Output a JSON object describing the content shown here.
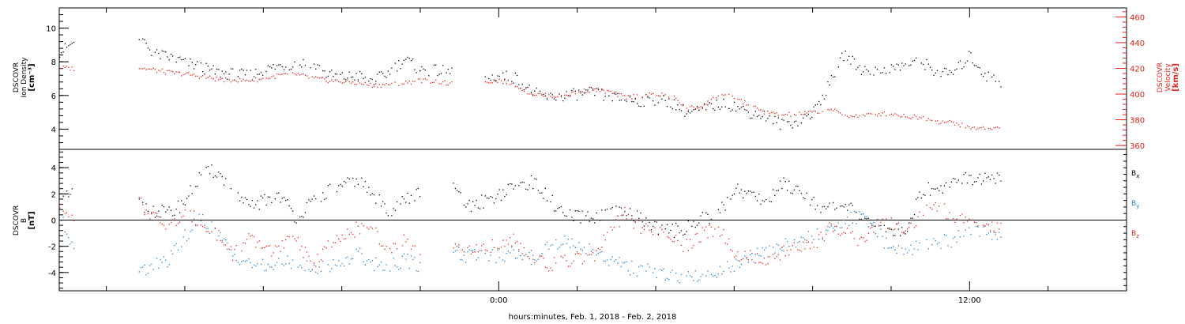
{
  "colors": {
    "density": "#000000",
    "velocity": "#e8201c",
    "bx": "#000000",
    "by": "#1f7fd0",
    "bz": "#e8201c",
    "axis": "#000000"
  },
  "xlabel": "hours:minutes, Feb.  1, 2018 - Feb.  2, 2018",
  "x_tick_labels": [
    "0:00",
    "12:00"
  ],
  "chart_data": [
    {
      "type": "scatter",
      "panel": "plasma",
      "x_unit": "hours relative to 2018-02-02 00:00",
      "x": [
        -11.2,
        -10.8,
        -10.4,
        -10,
        -9.6,
        -9.2,
        -8.8,
        -8.4,
        -8,
        -7.6,
        -7.2,
        -6.8,
        -6.4,
        -6,
        -5.6,
        -5.2,
        -4.8,
        -4.4,
        -4,
        -3.6,
        -3.2,
        -2.8,
        -2.4,
        -2,
        -1.6,
        -1.2,
        -0.8,
        -0.4,
        0,
        0.4,
        0.8,
        1.2,
        1.6,
        2,
        2.4,
        2.8,
        3.2,
        3.6,
        4,
        4.4,
        4.8,
        5.2,
        5.6,
        6,
        6.4,
        6.8,
        7.2,
        7.6,
        8,
        8.4,
        8.8,
        9.2,
        9.6,
        10,
        10.4,
        10.8,
        11.2,
        11.6,
        12,
        12.4,
        12.8
      ],
      "xlim": [
        -11.2,
        16
      ],
      "x_tick_labels": [
        "0:00",
        "12:00"
      ],
      "ylabel": [
        "DSCOVR",
        "Ion Density",
        "[cm⁻³]"
      ],
      "ylim": [
        2.8,
        11.2
      ],
      "y_ticks": [
        4,
        6,
        8,
        10
      ],
      "y2label": [
        "DSCOVR",
        "Velocity",
        "[km/s]"
      ],
      "y2lim": [
        357,
        467
      ],
      "y2_ticks": [
        360,
        380,
        400,
        420,
        440,
        460
      ],
      "series": [
        {
          "name": "",
          "axis": "left",
          "values": [
            8.6,
            9.2,
            null,
            null,
            null,
            9.6,
            8.5,
            8.3,
            8.0,
            7.7,
            7.4,
            7.3,
            7.2,
            7.5,
            7.8,
            7.9,
            8.0,
            7.3,
            7.1,
            7.2,
            6.9,
            7.4,
            8.2,
            7.5,
            7.5,
            7.4,
            null,
            7.0,
            7.2,
            7.1,
            6.3,
            5.9,
            6.0,
            6.1,
            6.2,
            5.9,
            5.8,
            5.7,
            5.8,
            5.6,
            5.0,
            5.2,
            5.5,
            5.4,
            5.0,
            4.8,
            4.3,
            4.5,
            5.0,
            6.6,
            8.5,
            7.6,
            7.5,
            7.6,
            7.9,
            8.0,
            7.3,
            7.4,
            8.4,
            7.2,
            6.8
          ]
        },
        {
          "name": "",
          "axis": "right",
          "values": [
            421,
            420,
            null,
            null,
            null,
            421,
            419,
            417,
            416,
            414,
            412,
            411,
            411,
            412,
            415,
            416,
            413,
            411,
            410,
            409,
            407,
            408,
            409,
            411,
            410,
            408,
            null,
            410,
            411,
            408,
            401,
            399,
            399,
            402,
            404,
            402,
            398,
            399,
            400,
            399,
            389,
            391,
            400,
            398,
            391,
            386,
            384,
            385,
            386,
            389,
            384,
            383,
            385,
            385,
            383,
            382,
            379,
            378,
            374,
            374,
            374
          ]
        }
      ]
    },
    {
      "type": "scatter",
      "panel": "magnetic-field",
      "x_unit": "hours relative to 2018-02-02 00:00",
      "x": [
        -11.2,
        -10.8,
        -10.4,
        -10,
        -9.6,
        -9.2,
        -8.8,
        -8.4,
        -8,
        -7.6,
        -7.2,
        -6.8,
        -6.4,
        -6,
        -5.6,
        -5.2,
        -4.8,
        -4.4,
        -4,
        -3.6,
        -3.2,
        -2.8,
        -2.4,
        -2,
        -1.6,
        -1.2,
        -0.8,
        -0.4,
        0,
        0.4,
        0.8,
        1.2,
        1.6,
        2,
        2.4,
        2.8,
        3.2,
        3.6,
        4,
        4.4,
        4.8,
        5.2,
        5.6,
        6,
        6.4,
        6.8,
        7.2,
        7.6,
        8,
        8.4,
        8.8,
        9.2,
        9.6,
        10,
        10.4,
        10.8,
        11.2,
        11.6,
        12,
        12.4,
        12.8
      ],
      "xlim": [
        -11.2,
        16
      ],
      "x_tick_labels": [
        "0:00",
        "12:00"
      ],
      "ylabel": [
        "DSCOVR",
        "B",
        "[nT]"
      ],
      "ylim": [
        -5.4,
        5.4
      ],
      "y_ticks": [
        -4,
        -2,
        0,
        2,
        4
      ],
      "zero_line": true,
      "series": [
        {
          "name": "Bx",
          "values": [
            1.5,
            2.0,
            null,
            null,
            null,
            1.2,
            0.8,
            0.5,
            1.5,
            3.5,
            3.8,
            2.2,
            1.0,
            1.5,
            2.0,
            0.3,
            1.2,
            2.2,
            2.5,
            3.2,
            1.8,
            0.8,
            1.5,
            2.2,
            null,
            2.5,
            1.0,
            1.5,
            2.0,
            2.5,
            3.0,
            2.0,
            0.5,
            0.2,
            0.3,
            0.5,
            0.6,
            0.2,
            -0.5,
            -0.8,
            -0.5,
            0.2,
            0.5,
            2.5,
            2.0,
            1.5,
            2.8,
            2.5,
            1.5,
            0.8,
            1.0,
            0.5,
            -0.3,
            -0.8,
            -0.6,
            2.5,
            2.3,
            3.3,
            3.3,
            3.2,
            3.1
          ]
        },
        {
          "name": "By",
          "values": [
            0.2,
            -2.0,
            null,
            null,
            null,
            -4.0,
            -3.5,
            -3.0,
            -1.2,
            0.2,
            -1.0,
            -2.5,
            -3.2,
            -3.5,
            -3.4,
            -3.0,
            -3.8,
            -3.5,
            -3.2,
            -2.5,
            -3.3,
            -3.5,
            -3.0,
            -3.5,
            null,
            -2.2,
            -2.8,
            -2.5,
            -2.8,
            -2.5,
            -3.0,
            -2.0,
            -1.5,
            -2.0,
            -2.2,
            -3.0,
            -3.5,
            -3.8,
            -3.9,
            -4.2,
            -4.4,
            -4.2,
            -3.8,
            -3.5,
            -2.8,
            -2.5,
            -2.0,
            -1.5,
            -1.2,
            -1.0,
            0.0,
            0.3,
            -0.5,
            -2.5,
            -2.2,
            -1.8,
            -1.6,
            -1.5,
            -0.5,
            -0.8,
            -1.5
          ]
        },
        {
          "name": "Bz",
          "values": [
            0.8,
            0.4,
            null,
            null,
            null,
            1.5,
            0.2,
            -0.5,
            0.5,
            0.0,
            -1.0,
            -2.5,
            -1.5,
            -2.0,
            -2.3,
            -1.0,
            -3.5,
            -2.0,
            -1.5,
            -0.5,
            -0.8,
            -2.5,
            -1.2,
            -2.5,
            null,
            -2.0,
            -2.5,
            -2.2,
            -1.8,
            -1.5,
            -2.5,
            -3.5,
            -3.2,
            -3.0,
            -2.8,
            -1.0,
            0.5,
            -0.5,
            -0.8,
            -1.5,
            -2.0,
            -1.0,
            -0.5,
            -2.5,
            -2.8,
            -3.2,
            -2.5,
            -1.8,
            -2.0,
            -0.5,
            -1.0,
            -1.5,
            -0.5,
            -0.3,
            -1.0,
            0.8,
            1.0,
            0.3,
            0.2,
            -0.2,
            -0.6
          ]
        }
      ]
    }
  ]
}
